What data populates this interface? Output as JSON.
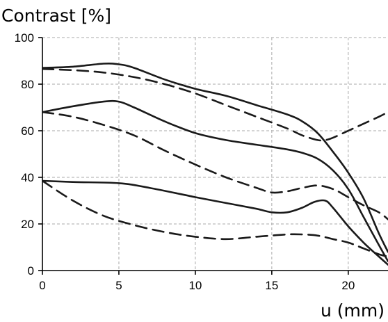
{
  "chart_data": {
    "type": "line",
    "title": "",
    "ylabel": "Contrast [%]",
    "xlabel": "u (mm)",
    "xlim": [
      0,
      22.6
    ],
    "ylim": [
      0,
      100
    ],
    "xticks": [
      0,
      5,
      10,
      15,
      20
    ],
    "yticks": [
      0,
      20,
      40,
      60,
      80,
      100
    ],
    "grid": true,
    "series": [
      {
        "style": "solid",
        "x": [
          0,
          2,
          4,
          5,
          6,
          8,
          10,
          12,
          14,
          16,
          17,
          18,
          19,
          20,
          21,
          22,
          22.6
        ],
        "y": [
          87,
          87.5,
          88.8,
          88.5,
          87,
          82,
          78,
          75,
          71,
          67,
          64,
          59,
          51,
          42,
          31,
          16,
          8
        ]
      },
      {
        "style": "dashed",
        "x": [
          0,
          2,
          4,
          6,
          8,
          10,
          12,
          14,
          16,
          17,
          18,
          18.5,
          19,
          20,
          21,
          22,
          22.6
        ],
        "y": [
          86.5,
          86,
          85,
          83,
          80,
          76,
          71,
          66,
          61,
          58,
          56,
          56,
          57,
          60,
          63,
          66,
          68
        ]
      },
      {
        "style": "solid",
        "x": [
          0,
          2,
          4,
          5,
          6,
          8,
          10,
          12,
          14,
          16,
          17,
          18,
          19,
          20,
          21,
          22,
          22.6
        ],
        "y": [
          68,
          70.5,
          72.5,
          72.5,
          70,
          64,
          59,
          56,
          54,
          52,
          50.5,
          48,
          43,
          35,
          23,
          11,
          4
        ]
      },
      {
        "style": "dashed",
        "x": [
          0,
          2,
          4,
          6,
          8,
          10,
          12,
          14,
          15,
          16,
          17,
          18,
          19,
          20,
          21,
          22,
          22.6
        ],
        "y": [
          68,
          66,
          62.5,
          58,
          51.5,
          45.5,
          40,
          35.5,
          33.5,
          34,
          35.5,
          36.5,
          35,
          31.5,
          28,
          25,
          22
        ]
      },
      {
        "style": "solid",
        "x": [
          0,
          2,
          5,
          7,
          10,
          12,
          14,
          15,
          16,
          17,
          17.8,
          18.5,
          19,
          20,
          21,
          22,
          22.6
        ],
        "y": [
          38.5,
          38,
          37.5,
          35.5,
          31.5,
          29,
          26.5,
          25,
          25,
          27,
          29.5,
          30,
          27,
          19,
          12,
          6,
          2.5
        ]
      },
      {
        "style": "dashed",
        "x": [
          0,
          2,
          4,
          6,
          8,
          10,
          12,
          14,
          16,
          17,
          18,
          19,
          20,
          21,
          22,
          22.6
        ],
        "y": [
          38.5,
          30,
          23.5,
          19.5,
          16.5,
          14.5,
          13.5,
          14.5,
          15.5,
          15.5,
          15,
          13.5,
          12,
          9.5,
          7,
          6
        ]
      }
    ]
  }
}
